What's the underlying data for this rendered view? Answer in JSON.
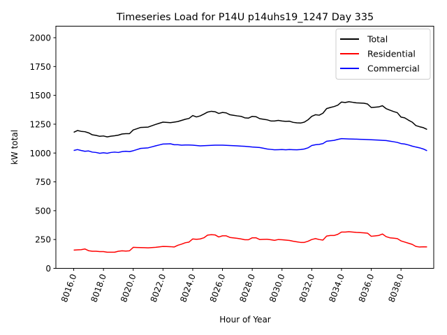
{
  "chart_data": {
    "type": "line",
    "title": "Timeseries Load for P14U p14uhs19_1247  Day 335",
    "xlabel": "Hour of Year",
    "ylabel": "kW total",
    "xlim": [
      8014.8,
      8040.2
    ],
    "ylim": [
      0,
      2100
    ],
    "xticks": [
      8016,
      8018,
      8020,
      8022,
      8024,
      8026,
      8028,
      8030,
      8032,
      8034,
      8036,
      8038
    ],
    "xtick_labels": [
      "8016.0",
      "8018.0",
      "8020.0",
      "8022.0",
      "8024.0",
      "8026.0",
      "8028.0",
      "8030.0",
      "8032.0",
      "8034.0",
      "8036.0",
      "8038.0"
    ],
    "yticks": [
      0,
      250,
      500,
      750,
      1000,
      1250,
      1500,
      1750,
      2000
    ],
    "ytick_labels": [
      "0",
      "250",
      "500",
      "750",
      "1000",
      "1250",
      "1500",
      "1750",
      "2000"
    ],
    "grid": false,
    "legend_position": "top-right",
    "x_range": {
      "start": 8016,
      "end": 8039.75,
      "step": 0.25
    },
    "series": [
      {
        "name": "Total",
        "color": "#000000",
        "keypoints": [
          [
            8016,
            1180
          ],
          [
            8016.25,
            1195
          ],
          [
            8016.5,
            1188
          ],
          [
            8016.75,
            1185
          ],
          [
            8017,
            1175
          ],
          [
            8017.25,
            1158
          ],
          [
            8017.5,
            1153
          ],
          [
            8017.75,
            1145
          ],
          [
            8018,
            1148
          ],
          [
            8018.25,
            1140
          ],
          [
            8018.5,
            1146
          ],
          [
            8018.75,
            1150
          ],
          [
            8019,
            1155
          ],
          [
            8019.25,
            1165
          ],
          [
            8019.5,
            1168
          ],
          [
            8019.75,
            1168
          ],
          [
            8020,
            1200
          ],
          [
            8020.5,
            1222
          ],
          [
            8021,
            1225
          ],
          [
            8021.5,
            1248
          ],
          [
            8022,
            1268
          ],
          [
            8022.5,
            1263
          ],
          [
            8023,
            1273
          ],
          [
            8023.5,
            1293
          ],
          [
            8023.75,
            1300
          ],
          [
            8024,
            1325
          ],
          [
            8024.25,
            1313
          ],
          [
            8024.5,
            1322
          ],
          [
            8024.75,
            1338
          ],
          [
            8025,
            1355
          ],
          [
            8025.25,
            1362
          ],
          [
            8025.5,
            1358
          ],
          [
            8025.75,
            1343
          ],
          [
            8026,
            1352
          ],
          [
            8026.25,
            1348
          ],
          [
            8026.5,
            1332
          ],
          [
            8027,
            1322
          ],
          [
            8027.25,
            1318
          ],
          [
            8027.5,
            1305
          ],
          [
            8027.75,
            1303
          ],
          [
            8028,
            1318
          ],
          [
            8028.25,
            1315
          ],
          [
            8028.5,
            1298
          ],
          [
            8029,
            1288
          ],
          [
            8029.25,
            1278
          ],
          [
            8029.5,
            1278
          ],
          [
            8029.75,
            1283
          ],
          [
            8030,
            1278
          ],
          [
            8030.25,
            1275
          ],
          [
            8030.5,
            1276
          ],
          [
            8030.75,
            1266
          ],
          [
            8031,
            1262
          ],
          [
            8031.25,
            1260
          ],
          [
            8031.5,
            1268
          ],
          [
            8031.75,
            1288
          ],
          [
            8032,
            1318
          ],
          [
            8032.25,
            1332
          ],
          [
            8032.5,
            1328
          ],
          [
            8032.75,
            1345
          ],
          [
            8033,
            1385
          ],
          [
            8033.25,
            1395
          ],
          [
            8033.5,
            1403
          ],
          [
            8033.75,
            1415
          ],
          [
            8034,
            1442
          ],
          [
            8034.25,
            1438
          ],
          [
            8034.5,
            1445
          ],
          [
            8034.75,
            1440
          ],
          [
            8035,
            1435
          ],
          [
            8035.5,
            1432
          ],
          [
            8035.75,
            1425
          ],
          [
            8036,
            1395
          ],
          [
            8036.5,
            1400
          ],
          [
            8036.75,
            1410
          ],
          [
            8037,
            1385
          ],
          [
            8037.25,
            1372
          ],
          [
            8037.5,
            1360
          ],
          [
            8037.75,
            1350
          ],
          [
            8038,
            1312
          ],
          [
            8038.25,
            1305
          ],
          [
            8038.5,
            1285
          ],
          [
            8038.75,
            1268
          ],
          [
            8039,
            1238
          ],
          [
            8039.25,
            1228
          ],
          [
            8039.5,
            1220
          ],
          [
            8039.75,
            1205
          ]
        ]
      },
      {
        "name": "Residential",
        "color": "#ff0000",
        "keypoints": [
          [
            8016,
            158
          ],
          [
            8016.25,
            160
          ],
          [
            8016.5,
            162
          ],
          [
            8016.75,
            168
          ],
          [
            8017,
            153
          ],
          [
            8017.25,
            148
          ],
          [
            8017.5,
            148
          ],
          [
            8017.75,
            145
          ],
          [
            8018,
            145
          ],
          [
            8018.25,
            140
          ],
          [
            8018.5,
            140
          ],
          [
            8018.75,
            140
          ],
          [
            8019,
            148
          ],
          [
            8019.25,
            152
          ],
          [
            8019.5,
            150
          ],
          [
            8019.75,
            152
          ],
          [
            8020,
            182
          ],
          [
            8020.5,
            180
          ],
          [
            8021,
            178
          ],
          [
            8021.5,
            182
          ],
          [
            8022,
            190
          ],
          [
            8022.5,
            188
          ],
          [
            8022.75,
            185
          ],
          [
            8023,
            200
          ],
          [
            8023.25,
            210
          ],
          [
            8023.5,
            222
          ],
          [
            8023.75,
            228
          ],
          [
            8024,
            255
          ],
          [
            8024.25,
            252
          ],
          [
            8024.5,
            255
          ],
          [
            8024.75,
            265
          ],
          [
            8025,
            288
          ],
          [
            8025.25,
            292
          ],
          [
            8025.5,
            290
          ],
          [
            8025.75,
            272
          ],
          [
            8026,
            282
          ],
          [
            8026.25,
            282
          ],
          [
            8026.5,
            268
          ],
          [
            8027,
            260
          ],
          [
            8027.25,
            255
          ],
          [
            8027.5,
            248
          ],
          [
            8027.75,
            248
          ],
          [
            8028,
            265
          ],
          [
            8028.25,
            265
          ],
          [
            8028.5,
            250
          ],
          [
            8029,
            252
          ],
          [
            8029.25,
            248
          ],
          [
            8029.5,
            243
          ],
          [
            8029.75,
            250
          ],
          [
            8030,
            248
          ],
          [
            8030.25,
            245
          ],
          [
            8030.5,
            242
          ],
          [
            8030.75,
            235
          ],
          [
            8031,
            230
          ],
          [
            8031.25,
            225
          ],
          [
            8031.5,
            225
          ],
          [
            8031.75,
            235
          ],
          [
            8032,
            250
          ],
          [
            8032.25,
            258
          ],
          [
            8032.5,
            250
          ],
          [
            8032.75,
            245
          ],
          [
            8033,
            280
          ],
          [
            8033.25,
            285
          ],
          [
            8033.5,
            285
          ],
          [
            8033.75,
            295
          ],
          [
            8034,
            315
          ],
          [
            8034.25,
            315
          ],
          [
            8034.5,
            318
          ],
          [
            8034.75,
            315
          ],
          [
            8035,
            312
          ],
          [
            8035.5,
            308
          ],
          [
            8035.75,
            305
          ],
          [
            8036,
            278
          ],
          [
            8036.5,
            285
          ],
          [
            8036.75,
            298
          ],
          [
            8037,
            275
          ],
          [
            8037.25,
            265
          ],
          [
            8037.5,
            262
          ],
          [
            8037.75,
            258
          ],
          [
            8038,
            238
          ],
          [
            8038.25,
            228
          ],
          [
            8038.5,
            218
          ],
          [
            8038.75,
            208
          ],
          [
            8039,
            190
          ],
          [
            8039.25,
            185
          ],
          [
            8039.5,
            187
          ],
          [
            8039.75,
            186
          ]
        ]
      },
      {
        "name": "Commercial",
        "color": "#0000ff",
        "keypoints": [
          [
            8016,
            1022
          ],
          [
            8016.25,
            1030
          ],
          [
            8016.5,
            1022
          ],
          [
            8016.75,
            1015
          ],
          [
            8017,
            1018
          ],
          [
            8017.25,
            1008
          ],
          [
            8017.5,
            1005
          ],
          [
            8017.75,
            998
          ],
          [
            8018,
            1002
          ],
          [
            8018.25,
            998
          ],
          [
            8018.5,
            1005
          ],
          [
            8018.75,
            1008
          ],
          [
            8019,
            1005
          ],
          [
            8019.25,
            1012
          ],
          [
            8019.5,
            1015
          ],
          [
            8019.75,
            1012
          ],
          [
            8020,
            1020
          ],
          [
            8020.5,
            1040
          ],
          [
            8021,
            1045
          ],
          [
            8021.5,
            1062
          ],
          [
            8022,
            1078
          ],
          [
            8022.5,
            1080
          ],
          [
            8022.75,
            1072
          ],
          [
            8023,
            1072
          ],
          [
            8023.25,
            1068
          ],
          [
            8023.5,
            1070
          ],
          [
            8023.75,
            1070
          ],
          [
            8024,
            1068
          ],
          [
            8024.5,
            1062
          ],
          [
            8025,
            1065
          ],
          [
            8025.5,
            1068
          ],
          [
            8026,
            1068
          ],
          [
            8026.5,
            1065
          ],
          [
            8027,
            1062
          ],
          [
            8027.5,
            1058
          ],
          [
            8028,
            1052
          ],
          [
            8028.5,
            1048
          ],
          [
            8029,
            1035
          ],
          [
            8029.5,
            1028
          ],
          [
            8030,
            1030
          ],
          [
            8030.25,
            1028
          ],
          [
            8030.5,
            1030
          ],
          [
            8031,
            1028
          ],
          [
            8031.25,
            1030
          ],
          [
            8031.5,
            1035
          ],
          [
            8031.75,
            1045
          ],
          [
            8032,
            1065
          ],
          [
            8032.25,
            1072
          ],
          [
            8032.5,
            1075
          ],
          [
            8032.75,
            1082
          ],
          [
            8033,
            1102
          ],
          [
            8033.5,
            1110
          ],
          [
            8033.75,
            1118
          ],
          [
            8034,
            1125
          ],
          [
            8034.5,
            1122
          ],
          [
            8035,
            1120
          ],
          [
            8035.5,
            1118
          ],
          [
            8036,
            1115
          ],
          [
            8036.5,
            1112
          ],
          [
            8036.75,
            1110
          ],
          [
            8037,
            1108
          ],
          [
            8037.5,
            1098
          ],
          [
            8037.75,
            1092
          ],
          [
            8038,
            1082
          ],
          [
            8038.25,
            1078
          ],
          [
            8038.5,
            1070
          ],
          [
            8038.75,
            1060
          ],
          [
            8039,
            1052
          ],
          [
            8039.25,
            1045
          ],
          [
            8039.5,
            1035
          ],
          [
            8039.75,
            1020
          ]
        ]
      }
    ]
  }
}
